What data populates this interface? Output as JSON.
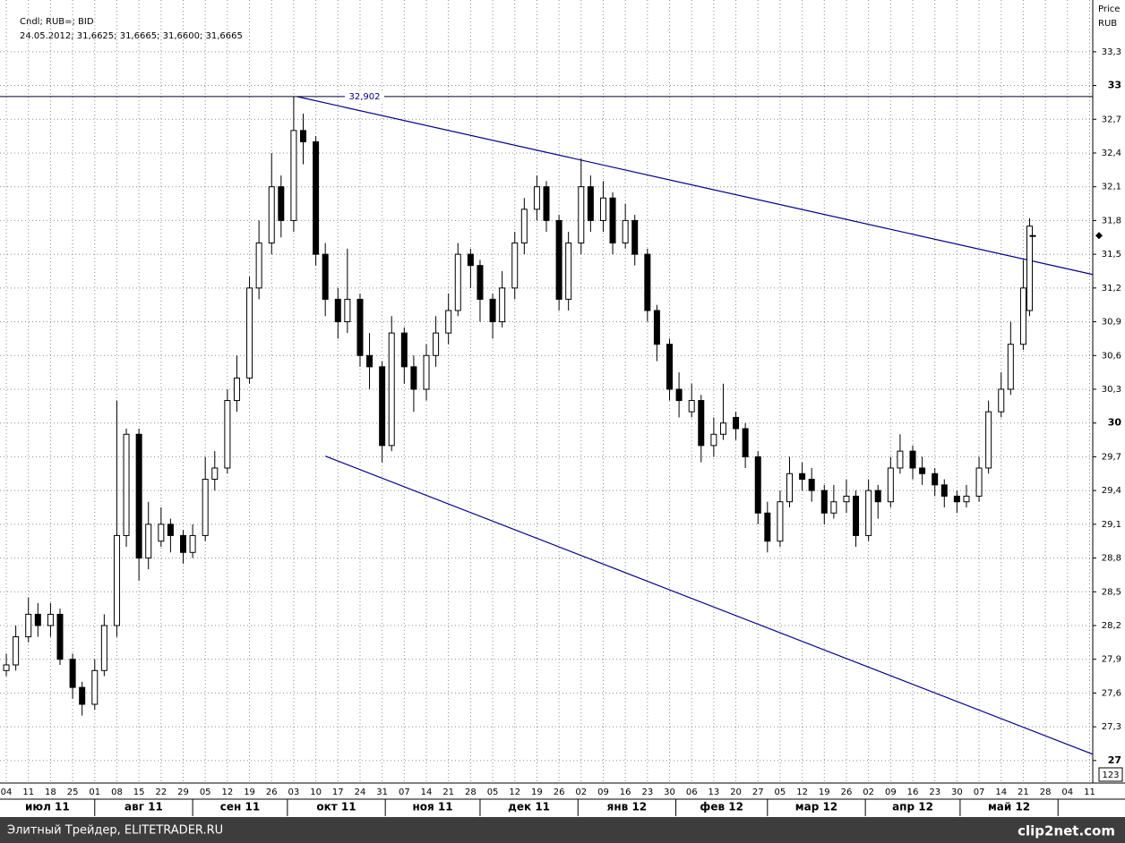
{
  "chart_data": {
    "type": "candlestick",
    "title": "Cndl; RUB=; BID",
    "subtitle": "24.05.2012; 31,6625; 31,6665; 31,6600; 31,6665",
    "y_label": "Price",
    "y_unit": "RUB",
    "x": [
      "2011-07-04",
      "2011-07-07",
      "2011-07-11",
      "2011-07-14",
      "2011-07-18",
      "2011-07-21",
      "2011-07-25",
      "2011-07-28",
      "2011-08-01",
      "2011-08-04",
      "2011-08-08",
      "2011-08-11",
      "2011-08-15",
      "2011-08-18",
      "2011-08-22",
      "2011-08-25",
      "2011-08-29",
      "2011-09-01",
      "2011-09-05",
      "2011-09-08",
      "2011-09-12",
      "2011-09-15",
      "2011-09-19",
      "2011-09-22",
      "2011-09-26",
      "2011-09-29",
      "2011-10-03",
      "2011-10-06",
      "2011-10-10",
      "2011-10-13",
      "2011-10-17",
      "2011-10-20",
      "2011-10-24",
      "2011-10-27",
      "2011-10-31",
      "2011-11-03",
      "2011-11-07",
      "2011-11-10",
      "2011-11-14",
      "2011-11-17",
      "2011-11-21",
      "2011-11-24",
      "2011-11-28",
      "2011-12-01",
      "2011-12-05",
      "2011-12-08",
      "2011-12-12",
      "2011-12-15",
      "2011-12-19",
      "2011-12-22",
      "2011-12-26",
      "2011-12-29",
      "2012-01-02",
      "2012-01-05",
      "2012-01-09",
      "2012-01-12",
      "2012-01-16",
      "2012-01-19",
      "2012-01-23",
      "2012-01-26",
      "2012-01-30",
      "2012-02-02",
      "2012-02-06",
      "2012-02-09",
      "2012-02-13",
      "2012-02-16",
      "2012-02-20",
      "2012-02-23",
      "2012-02-27",
      "2012-03-01",
      "2012-03-05",
      "2012-03-08",
      "2012-03-12",
      "2012-03-15",
      "2012-03-19",
      "2012-03-22",
      "2012-03-26",
      "2012-03-29",
      "2012-04-02",
      "2012-04-05",
      "2012-04-09",
      "2012-04-12",
      "2012-04-16",
      "2012-04-19",
      "2012-04-23",
      "2012-04-26",
      "2012-04-30",
      "2012-05-03",
      "2012-05-07",
      "2012-05-10",
      "2012-05-14",
      "2012-05-17",
      "2012-05-21",
      "2012-05-23",
      "2012-05-24"
    ],
    "open": [
      27.8,
      27.85,
      28.1,
      28.3,
      28.2,
      28.3,
      27.9,
      27.65,
      27.5,
      27.8,
      28.2,
      29.0,
      29.9,
      28.8,
      28.95,
      29.1,
      29.0,
      28.85,
      29.0,
      29.5,
      29.6,
      30.2,
      30.4,
      31.2,
      31.6,
      32.1,
      31.8,
      32.6,
      32.5,
      31.5,
      31.1,
      30.9,
      31.1,
      30.6,
      30.5,
      29.8,
      30.8,
      30.5,
      30.3,
      30.6,
      30.8,
      31.0,
      31.5,
      31.4,
      31.1,
      30.9,
      31.2,
      31.6,
      31.9,
      32.1,
      31.8,
      31.1,
      31.6,
      32.1,
      31.8,
      32.0,
      31.6,
      31.8,
      31.5,
      31.0,
      30.7,
      30.3,
      30.1,
      30.2,
      29.8,
      29.9,
      30.05,
      29.95,
      29.7,
      29.2,
      28.95,
      29.3,
      29.55,
      29.5,
      29.4,
      29.2,
      29.3,
      29.35,
      29.0,
      29.4,
      29.3,
      29.6,
      29.75,
      29.6,
      29.55,
      29.45,
      29.35,
      29.3,
      29.35,
      29.6,
      30.1,
      30.3,
      30.7,
      31.0,
      31.6625
    ],
    "high": [
      27.95,
      28.2,
      28.45,
      28.4,
      28.4,
      28.35,
      27.95,
      27.7,
      27.9,
      28.3,
      30.2,
      29.95,
      29.95,
      29.3,
      29.25,
      29.15,
      29.05,
      29.1,
      29.7,
      29.75,
      30.3,
      30.6,
      31.3,
      31.8,
      32.4,
      32.2,
      32.902,
      32.75,
      32.55,
      31.6,
      31.2,
      31.55,
      31.15,
      30.8,
      30.55,
      30.95,
      30.85,
      30.6,
      30.7,
      30.95,
      31.15,
      31.6,
      31.55,
      31.45,
      31.15,
      31.35,
      31.7,
      32.0,
      32.2,
      32.15,
      31.85,
      31.7,
      32.35,
      32.2,
      32.15,
      32.05,
      31.95,
      31.85,
      31.55,
      31.05,
      30.75,
      30.45,
      30.35,
      30.25,
      30.05,
      30.35,
      30.1,
      30.0,
      29.75,
      29.3,
      29.4,
      29.7,
      29.65,
      29.6,
      29.45,
      29.45,
      29.5,
      29.4,
      29.5,
      29.45,
      29.7,
      29.9,
      29.8,
      29.7,
      29.6,
      29.5,
      29.4,
      29.45,
      29.7,
      30.2,
      30.45,
      30.9,
      31.45,
      31.82,
      31.6665
    ],
    "low": [
      27.75,
      27.8,
      28.05,
      28.1,
      28.1,
      27.85,
      27.55,
      27.4,
      27.45,
      27.75,
      28.1,
      28.9,
      28.6,
      28.7,
      28.9,
      28.85,
      28.75,
      28.8,
      28.95,
      29.4,
      29.55,
      30.1,
      30.35,
      31.1,
      31.5,
      31.65,
      31.7,
      32.3,
      31.4,
      30.95,
      30.75,
      30.8,
      30.5,
      30.3,
      29.65,
      29.75,
      30.35,
      30.1,
      30.2,
      30.5,
      30.7,
      30.95,
      31.2,
      30.9,
      30.75,
      30.85,
      31.1,
      31.5,
      31.8,
      31.7,
      31.0,
      31.0,
      31.5,
      31.7,
      31.7,
      31.5,
      31.55,
      31.4,
      30.9,
      30.55,
      30.2,
      30.05,
      30.05,
      29.65,
      29.7,
      29.85,
      29.85,
      29.6,
      29.1,
      28.85,
      28.9,
      29.25,
      29.4,
      29.3,
      29.1,
      29.15,
      29.2,
      28.9,
      28.95,
      29.15,
      29.25,
      29.55,
      29.5,
      29.45,
      29.35,
      29.25,
      29.2,
      29.25,
      29.3,
      29.55,
      30.05,
      30.25,
      30.65,
      30.95,
      31.66
    ],
    "close": [
      27.85,
      28.1,
      28.3,
      28.2,
      28.3,
      27.9,
      27.65,
      27.5,
      27.8,
      28.2,
      29.0,
      29.9,
      28.8,
      29.1,
      29.1,
      29.0,
      28.85,
      29.0,
      29.5,
      29.6,
      30.2,
      30.4,
      31.2,
      31.6,
      32.1,
      31.8,
      32.6,
      32.5,
      31.5,
      31.1,
      30.9,
      31.1,
      30.6,
      30.5,
      29.8,
      30.8,
      30.5,
      30.3,
      30.6,
      30.8,
      31.0,
      31.5,
      31.4,
      31.1,
      30.9,
      31.2,
      31.6,
      31.9,
      32.1,
      31.8,
      31.1,
      31.6,
      32.1,
      31.8,
      32.0,
      31.6,
      31.8,
      31.5,
      31.0,
      30.7,
      30.3,
      30.2,
      30.2,
      29.8,
      29.9,
      30.0,
      29.95,
      29.7,
      29.2,
      28.95,
      29.3,
      29.55,
      29.5,
      29.4,
      29.2,
      29.3,
      29.35,
      29.0,
      29.4,
      29.3,
      29.6,
      29.75,
      29.6,
      29.55,
      29.45,
      29.35,
      29.3,
      29.35,
      29.6,
      30.1,
      30.3,
      30.7,
      31.2,
      31.75,
      31.6665
    ],
    "up_color": "#ffffff",
    "down_color": "#000000",
    "xlim": [
      "2011-07-02",
      "2012-06-12"
    ],
    "xticks": [
      {
        "value": "2011-07-04",
        "label": "04"
      },
      {
        "value": "2011-07-11",
        "label": "11"
      },
      {
        "value": "2011-07-18",
        "label": "18"
      },
      {
        "value": "2011-07-25",
        "label": "25"
      },
      {
        "value": "2011-08-01",
        "label": "01"
      },
      {
        "value": "2011-08-08",
        "label": "08"
      },
      {
        "value": "2011-08-15",
        "label": "15"
      },
      {
        "value": "2011-08-22",
        "label": "22"
      },
      {
        "value": "2011-08-29",
        "label": "29"
      },
      {
        "value": "2011-09-05",
        "label": "05"
      },
      {
        "value": "2011-09-12",
        "label": "12"
      },
      {
        "value": "2011-09-19",
        "label": "19"
      },
      {
        "value": "2011-09-26",
        "label": "26"
      },
      {
        "value": "2011-10-03",
        "label": "03"
      },
      {
        "value": "2011-10-10",
        "label": "10"
      },
      {
        "value": "2011-10-17",
        "label": "17"
      },
      {
        "value": "2011-10-24",
        "label": "24"
      },
      {
        "value": "2011-10-31",
        "label": "31"
      },
      {
        "value": "2011-11-07",
        "label": "07"
      },
      {
        "value": "2011-11-14",
        "label": "14"
      },
      {
        "value": "2011-11-21",
        "label": "21"
      },
      {
        "value": "2011-11-28",
        "label": "28"
      },
      {
        "value": "2011-12-05",
        "label": "05"
      },
      {
        "value": "2011-12-12",
        "label": "12"
      },
      {
        "value": "2011-12-19",
        "label": "19"
      },
      {
        "value": "2011-12-26",
        "label": "26"
      },
      {
        "value": "2012-01-02",
        "label": "02"
      },
      {
        "value": "2012-01-09",
        "label": "09"
      },
      {
        "value": "2012-01-16",
        "label": "16"
      },
      {
        "value": "2012-01-23",
        "label": "23"
      },
      {
        "value": "2012-01-30",
        "label": "30"
      },
      {
        "value": "2012-02-06",
        "label": "06"
      },
      {
        "value": "2012-02-13",
        "label": "13"
      },
      {
        "value": "2012-02-20",
        "label": "20"
      },
      {
        "value": "2012-02-27",
        "label": "27"
      },
      {
        "value": "2012-03-05",
        "label": "05"
      },
      {
        "value": "2012-03-12",
        "label": "12"
      },
      {
        "value": "2012-03-19",
        "label": "19"
      },
      {
        "value": "2012-03-26",
        "label": "26"
      },
      {
        "value": "2012-04-02",
        "label": "02"
      },
      {
        "value": "2012-04-09",
        "label": "09"
      },
      {
        "value": "2012-04-16",
        "label": "16"
      },
      {
        "value": "2012-04-23",
        "label": "23"
      },
      {
        "value": "2012-04-30",
        "label": "30"
      },
      {
        "value": "2012-05-07",
        "label": "07"
      },
      {
        "value": "2012-05-14",
        "label": "14"
      },
      {
        "value": "2012-05-21",
        "label": "21"
      },
      {
        "value": "2012-05-28",
        "label": "28"
      },
      {
        "value": "2012-06-04",
        "label": "04"
      },
      {
        "value": "2012-06-11",
        "label": "11"
      }
    ],
    "months": [
      {
        "value": "2011-07",
        "label": "июл 11"
      },
      {
        "value": "2011-08",
        "label": "авг 11"
      },
      {
        "value": "2011-09",
        "label": "сен 11"
      },
      {
        "value": "2011-10",
        "label": "окт 11"
      },
      {
        "value": "2011-11",
        "label": "ноя 11"
      },
      {
        "value": "2011-12",
        "label": "дек 11"
      },
      {
        "value": "2012-01",
        "label": "янв 12"
      },
      {
        "value": "2012-02",
        "label": "фев 12"
      },
      {
        "value": "2012-03",
        "label": "мар 12"
      },
      {
        "value": "2012-04",
        "label": "апр 12"
      },
      {
        "value": "2012-05",
        "label": "май 12"
      }
    ],
    "ylim": [
      26.8,
      33.76
    ],
    "yticks": [
      27,
      {
        "value": 27.3,
        "label": "27,3"
      },
      {
        "value": 27.6,
        "label": "27,6"
      },
      {
        "value": 27.9,
        "label": "27,9"
      },
      {
        "value": 28.2,
        "label": "28,2"
      },
      {
        "value": 28.5,
        "label": "28,5"
      },
      {
        "value": 28.8,
        "label": "28,8"
      },
      {
        "value": 29.1,
        "label": "29,1"
      },
      {
        "value": 29.4,
        "label": "29,4"
      },
      {
        "value": 29.7,
        "label": "29,7"
      },
      30,
      {
        "value": 30.3,
        "label": "30,3"
      },
      {
        "value": 30.6,
        "label": "30,6"
      },
      {
        "value": 30.9,
        "label": "30,9"
      },
      {
        "value": 31.2,
        "label": "31,2"
      },
      {
        "value": 31.5,
        "label": "31,5"
      },
      {
        "value": 31.8,
        "label": "31,8"
      },
      {
        "value": 32.1,
        "label": "32,1"
      },
      {
        "value": 32.4,
        "label": "32,4"
      },
      {
        "value": 32.7,
        "label": "32,7"
      },
      33,
      {
        "value": 33.3,
        "label": "33,3"
      }
    ],
    "grid": true,
    "hline": {
      "value": 32.902,
      "label": "32,902"
    },
    "trendlines": [
      {
        "x": [
          "2011-10-04",
          "2012-06-12"
        ],
        "y": [
          32.902,
          31.32
        ],
        "color": "#00008b"
      },
      {
        "x": [
          "2011-10-13",
          "2012-06-12"
        ],
        "y": [
          29.706,
          27.056
        ],
        "color": "#00008b"
      }
    ],
    "scale_box": "123"
  },
  "footer": {
    "text": "Элитный Трейдер, ELITETRADER.RU",
    "logo": "clip2net.com"
  }
}
